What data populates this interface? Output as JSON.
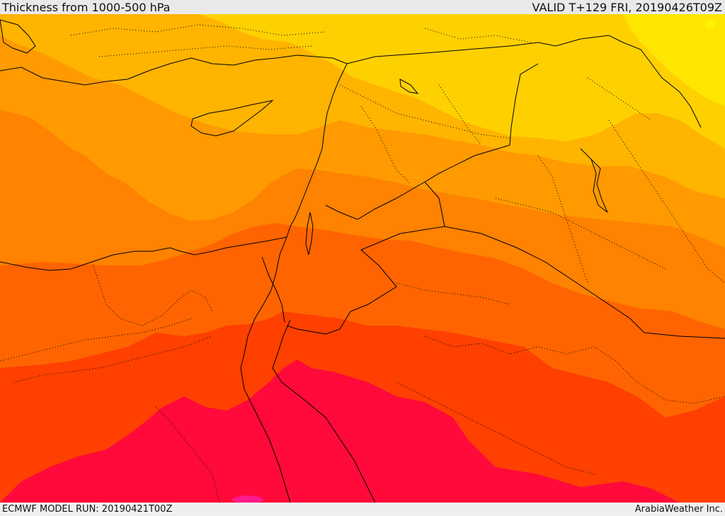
{
  "header": {
    "title": "Thickness from 1000-500 hPa",
    "valid": "VALID T+129 FRI, 20190426T09Z"
  },
  "footer": {
    "model_run": "ECMWF MODEL RUN: 20190421T00Z",
    "credit": "ArabiaWeather Inc."
  },
  "colors": {
    "band_1": "#ffe600",
    "band_2": "#ffd000",
    "band_3": "#ffb400",
    "band_4": "#ff9a00",
    "band_5": "#ff8200",
    "band_6": "#ff6400",
    "band_7": "#ff4000",
    "band_8": "#ff0a3a",
    "band_9": "#ff1a8a",
    "border": "#000000"
  }
}
